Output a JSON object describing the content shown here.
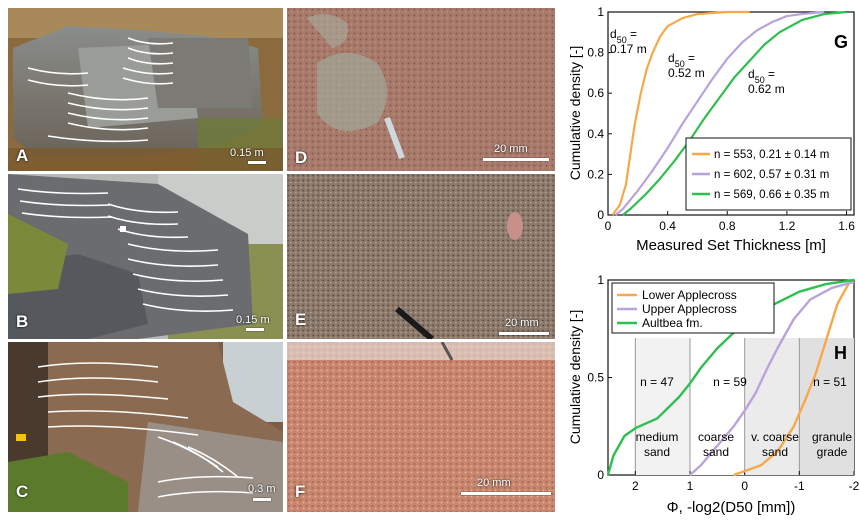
{
  "panels": {
    "A": {
      "label": "A",
      "scale": "0.15 m"
    },
    "B": {
      "label": "B",
      "scale": "0.15 m"
    },
    "C": {
      "label": "C",
      "scale": "0.3 m"
    },
    "D": {
      "label": "D",
      "scale": "20 mm"
    },
    "E": {
      "label": "E",
      "scale": "20 mm"
    },
    "F": {
      "label": "F",
      "scale": "20 mm"
    }
  },
  "colors": {
    "orange": "#f7a84a",
    "purple": "#b9a3dc",
    "green": "#2fbf4f"
  },
  "chart_data": [
    {
      "type": "line",
      "panel_label": "G",
      "xlabel": "Measured Set Thickness [m]",
      "ylabel": "Cumulative density [-]",
      "xlim": [
        0,
        1.65
      ],
      "ylim": [
        0,
        1
      ],
      "xticks": [
        "0",
        "0.4",
        "0.8",
        "1.2",
        "1.6"
      ],
      "yticks": [
        "0",
        "0.2",
        "0.4",
        "0.6",
        "0.8",
        "1"
      ],
      "grid": false,
      "legend_position": "bottom-right",
      "series": [
        {
          "name": "n = 553, 0.21 ± 0.14 m",
          "color": "#f7a84a",
          "x": [
            0.03,
            0.08,
            0.12,
            0.15,
            0.18,
            0.22,
            0.26,
            0.3,
            0.35,
            0.4,
            0.5,
            0.6,
            0.7,
            0.8,
            0.95
          ],
          "y": [
            0,
            0.05,
            0.15,
            0.3,
            0.45,
            0.6,
            0.72,
            0.8,
            0.88,
            0.93,
            0.97,
            0.99,
            0.995,
            1,
            1
          ]
        },
        {
          "name": "n = 602, 0.57 ± 0.31 m",
          "color": "#b9a3dc",
          "x": [
            0.05,
            0.1,
            0.2,
            0.3,
            0.4,
            0.5,
            0.6,
            0.7,
            0.8,
            0.9,
            1.0,
            1.1,
            1.2,
            1.3,
            1.45
          ],
          "y": [
            0,
            0.03,
            0.12,
            0.22,
            0.33,
            0.45,
            0.56,
            0.67,
            0.77,
            0.85,
            0.91,
            0.95,
            0.98,
            0.99,
            1
          ]
        },
        {
          "name": "n = 569, 0.66 ± 0.35 m",
          "color": "#2fbf4f",
          "x": [
            0.1,
            0.15,
            0.25,
            0.35,
            0.45,
            0.55,
            0.65,
            0.75,
            0.85,
            0.95,
            1.05,
            1.15,
            1.3,
            1.45,
            1.6
          ],
          "y": [
            0,
            0.03,
            0.1,
            0.18,
            0.27,
            0.37,
            0.48,
            0.58,
            0.68,
            0.76,
            0.84,
            0.9,
            0.96,
            0.99,
            1
          ]
        }
      ],
      "annotations": [
        {
          "sub": "50",
          "value": "0.17 m"
        },
        {
          "sub": "50",
          "value": "0.52 m"
        },
        {
          "sub": "50",
          "value": "0.62 m"
        }
      ]
    },
    {
      "type": "line",
      "panel_label": "H",
      "xlabel": "Φ, -log2(D50 [mm])",
      "ylabel": "Cumulative density [-]",
      "xlim": [
        2.5,
        -2
      ],
      "ylim": [
        0,
        1
      ],
      "xticks": [
        "2",
        "1",
        "0",
        "-1",
        "-2"
      ],
      "yticks": [
        "0",
        "0.5",
        "1"
      ],
      "grid": false,
      "legend_position": "top-left",
      "series": [
        {
          "name": "Lower Applecross",
          "color": "#f7a84a",
          "x": [
            0.2,
            0,
            -0.3,
            -0.6,
            -0.9,
            -1.1,
            -1.3,
            -1.5,
            -1.7,
            -1.9
          ],
          "y": [
            0,
            0.02,
            0.05,
            0.12,
            0.25,
            0.38,
            0.52,
            0.7,
            0.88,
            0.98
          ]
        },
        {
          "name": "Upper Applecross",
          "color": "#b9a3dc",
          "x": [
            1.0,
            0.8,
            0.5,
            0.2,
            0,
            -0.2,
            -0.4,
            -0.6,
            -0.9,
            -1.2,
            -1.6,
            -2.0
          ],
          "y": [
            0,
            0.05,
            0.15,
            0.25,
            0.33,
            0.42,
            0.54,
            0.65,
            0.8,
            0.9,
            0.96,
            0.99
          ]
        },
        {
          "name": "Aultbea fm.",
          "color": "#2fbf4f",
          "x": [
            2.5,
            2.4,
            2.2,
            2.0,
            1.6,
            1.2,
            1.0,
            0.8,
            0.5,
            0.2,
            0,
            -0.5,
            -1.0,
            -1.5,
            -2.0
          ],
          "y": [
            0,
            0.1,
            0.2,
            0.24,
            0.29,
            0.4,
            0.47,
            0.55,
            0.65,
            0.73,
            0.78,
            0.87,
            0.94,
            0.98,
            1
          ]
        }
      ],
      "zones": [
        {
          "count": "n = 47",
          "line1": "medium",
          "line2": "sand"
        },
        {
          "count": "n = 59",
          "line1": "coarse",
          "line2": "sand"
        },
        {
          "count": "",
          "line1": "v. coarse",
          "line2": "sand"
        },
        {
          "count": "n = 51",
          "line1": "granule",
          "line2": "grade"
        }
      ]
    }
  ]
}
